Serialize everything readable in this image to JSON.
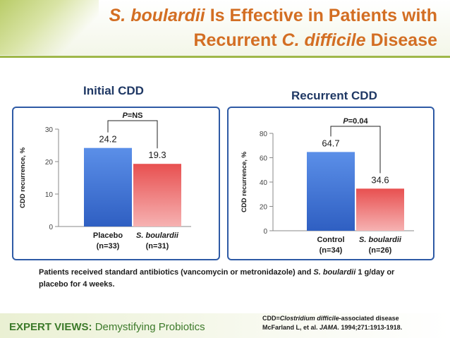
{
  "title": {
    "line1_italic": "S. boulardii",
    "line1_rest": " Is Effective in Patients with",
    "line2_start": "Recurrent ",
    "line2_italic": "C. difficile",
    "line2_end": " Disease"
  },
  "colors": {
    "title": "#d36e23",
    "panel_border": "#2e5aa5",
    "blue_bar": "#4a7fdc",
    "red_bar": "#e04a4a",
    "brand_green": "#3c7a2a"
  },
  "chart_data": [
    {
      "type": "bar",
      "title": "Initial CDD",
      "ylabel": "CDD recurrence, %",
      "ylim": [
        0,
        30
      ],
      "yticks": [
        "0",
        "10",
        "20",
        "30"
      ],
      "categories": [
        {
          "line1": "Placebo",
          "line1_italic": false,
          "line2": "(n=33)"
        },
        {
          "line1": "S. boulardii",
          "line1_italic": true,
          "line2": "(n=31)"
        }
      ],
      "values": [
        24.2,
        19.3
      ],
      "value_labels": [
        "24.2",
        "19.3"
      ],
      "pvalue": {
        "p": "P",
        "rest": "=NS"
      },
      "grid": false
    },
    {
      "type": "bar",
      "title": "Recurrent CDD",
      "ylabel": "CDD recurrence, %",
      "ylim": [
        0,
        80
      ],
      "yticks": [
        "0",
        "20",
        "40",
        "60",
        "80"
      ],
      "categories": [
        {
          "line1": "Control",
          "line1_italic": false,
          "line2": "(n=34)"
        },
        {
          "line1": "S. boulardii",
          "line1_italic": true,
          "line2": "(n=26)"
        }
      ],
      "values": [
        64.7,
        34.6
      ],
      "value_labels": [
        "64.7",
        "34.6"
      ],
      "pvalue": {
        "p": "P",
        "rest": "=0.04"
      },
      "grid": false
    }
  ],
  "footnote": {
    "part1": "Patients received standard antibiotics (vancomycin or metronidazole) and ",
    "italic": "S. boulardii",
    "part2": " 1 g/day or placebo for 4 weeks."
  },
  "reference": {
    "line1_start": "CDD=",
    "line1_italic": "Clostridium difficile",
    "line1_end": "-associated disease",
    "line2_start": "McFarland L, et al. ",
    "line2_italic": "JAMA.",
    "line2_end": " 1994;271:1913-1918."
  },
  "footer": {
    "brand_bold": "EXPERT VIEWS:",
    "brand_rest": " Demystifying Probiotics"
  }
}
